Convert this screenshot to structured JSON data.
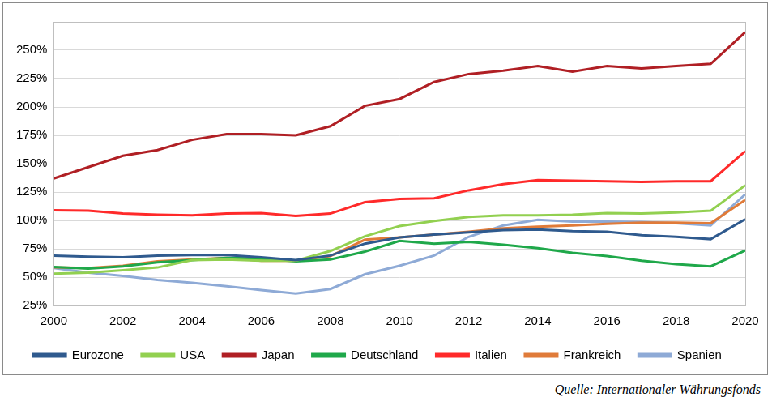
{
  "chart_data": {
    "type": "line",
    "source": "Quelle: Internationaler Währungsfonds",
    "x": [
      2000,
      2001,
      2002,
      2003,
      2004,
      2005,
      2006,
      2007,
      2008,
      2009,
      2010,
      2011,
      2012,
      2013,
      2014,
      2015,
      2016,
      2017,
      2018,
      2019,
      2020
    ],
    "xlim": [
      2000,
      2020
    ],
    "xticks": [
      2000,
      2002,
      2004,
      2006,
      2008,
      2010,
      2012,
      2014,
      2016,
      2018,
      2020
    ],
    "ylim": [
      25,
      275
    ],
    "yticks": [
      {
        "value": 25,
        "label": "25%"
      },
      {
        "value": 50,
        "label": "50%"
      },
      {
        "value": 75,
        "label": "75%"
      },
      {
        "value": 100,
        "label": "100%"
      },
      {
        "value": 125,
        "label": "125%"
      },
      {
        "value": 150,
        "label": "150%"
      },
      {
        "value": 175,
        "label": "175%"
      },
      {
        "value": 200,
        "label": "200%"
      },
      {
        "value": 225,
        "label": "225%"
      },
      {
        "value": 250,
        "label": "250%"
      }
    ],
    "grid": "y",
    "legend": "bottom",
    "series": [
      {
        "name": "Eurozone",
        "color": "#2f5a8e",
        "values": [
          69,
          68,
          67.5,
          69,
          69.5,
          69.5,
          67.5,
          65,
          69,
          79.5,
          85,
          87.5,
          89.5,
          91.5,
          92,
          90.5,
          90,
          87,
          85.5,
          83.5,
          101
        ]
      },
      {
        "name": "USA",
        "color": "#92d050",
        "values": [
          53,
          54,
          56,
          58.5,
          65,
          65.5,
          64.5,
          64.5,
          73,
          86,
          95,
          99.5,
          103,
          104.5,
          104.5,
          105,
          106.5,
          106,
          107,
          108.5,
          131
        ]
      },
      {
        "name": "Japan",
        "color": "#b01f24",
        "values": [
          137,
          147,
          157,
          162,
          171,
          176,
          176,
          175,
          183,
          201,
          207,
          222,
          229,
          232,
          236,
          231,
          236,
          234,
          236,
          238,
          266
        ]
      },
      {
        "name": "Deutschland",
        "color": "#1fa84a",
        "values": [
          59,
          57.5,
          59.5,
          63,
          65,
          67,
          66.5,
          64,
          65.5,
          72.5,
          82,
          79.5,
          81,
          78.5,
          75.5,
          71.5,
          68.5,
          64.5,
          61.5,
          59.5,
          73.5
        ]
      },
      {
        "name": "Italien",
        "color": "#ff2a2a",
        "values": [
          109,
          108.5,
          106,
          105,
          104.5,
          106,
          106.5,
          104,
          106,
          116,
          119,
          119.5,
          126.5,
          132,
          135.5,
          135,
          134.5,
          134,
          134.5,
          134.5,
          161
        ]
      },
      {
        "name": "Frankreich",
        "color": "#e07b39",
        "values": [
          58.5,
          58,
          60,
          64,
          65.5,
          67,
          64.5,
          64.5,
          68.5,
          83,
          85,
          87.5,
          90,
          93,
          94.5,
          95.5,
          97,
          98,
          98,
          97.5,
          118
        ]
      },
      {
        "name": "Spanien",
        "color": "#8eaad6",
        "values": [
          58,
          54,
          51,
          47.5,
          45,
          42,
          38.5,
          35.5,
          39.5,
          52.5,
          60,
          69,
          85.5,
          95.5,
          100.5,
          99,
          99,
          98.5,
          97.5,
          95.5,
          123
        ]
      }
    ]
  }
}
